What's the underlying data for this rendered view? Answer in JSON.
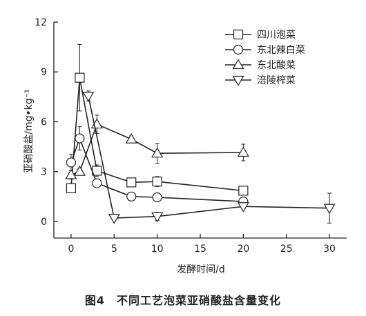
{
  "chart_data": {
    "type": "line",
    "caption": "图4　不同工艺泡菜亚硝酸盐含量变化",
    "xlabel": "发酵时间/d",
    "ylabel": "亚硝酸盐/mg•kg⁻¹",
    "xlim": [
      -2,
      32
    ],
    "ylim": [
      -1,
      12
    ],
    "xticks": [
      0,
      5,
      10,
      15,
      20,
      25,
      30
    ],
    "yticks": [
      0,
      3,
      6,
      9,
      12
    ],
    "grid": false,
    "legend_position": "top-right",
    "series": [
      {
        "name": "四川泡菜",
        "marker": "square",
        "x": [
          0,
          1,
          3,
          7,
          10,
          20
        ],
        "y": [
          2.0,
          8.65,
          3.05,
          2.35,
          2.4,
          1.85
        ],
        "err": [
          0.0,
          2.0,
          0.35,
          0.2,
          0.3,
          0.15
        ]
      },
      {
        "name": "东北辣白菜",
        "marker": "circle",
        "x": [
          0,
          1,
          3,
          7,
          10,
          20
        ],
        "y": [
          3.55,
          5.0,
          2.3,
          1.5,
          1.45,
          1.2
        ],
        "err": [
          0.5,
          0.7,
          0.2,
          0.12,
          0.12,
          0.2
        ]
      },
      {
        "name": "东北酸菜",
        "marker": "triangle-up",
        "x": [
          0,
          1,
          3,
          7,
          10,
          20
        ],
        "y": [
          2.8,
          3.0,
          5.85,
          4.95,
          4.1,
          4.15
        ],
        "err": [
          0.25,
          0.2,
          0.55,
          0.2,
          0.6,
          0.5
        ]
      },
      {
        "name": "涪陵榨菜",
        "marker": "triangle-down",
        "x": [
          2,
          5,
          10,
          20,
          30
        ],
        "y": [
          7.55,
          0.2,
          0.3,
          0.9,
          0.8
        ],
        "err": [
          0.3,
          0.1,
          0.25,
          0.15,
          0.9
        ]
      }
    ]
  }
}
